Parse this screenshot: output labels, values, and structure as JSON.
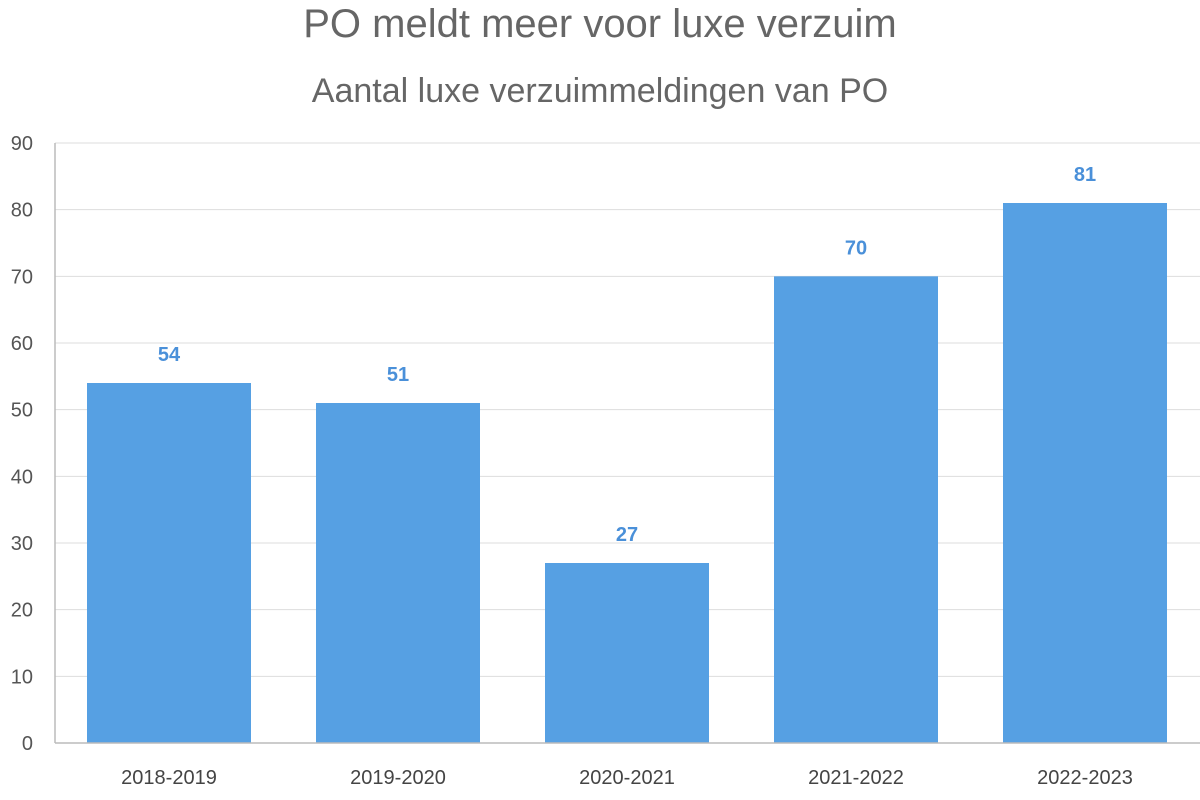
{
  "chart_data": {
    "type": "bar",
    "title": "PO meldt meer voor luxe verzuim",
    "subtitle": "Aantal luxe verzuimmeldingen van PO",
    "categories": [
      "2018-2019",
      "2019-2020",
      "2020-2021",
      "2021-2022",
      "2022-2023"
    ],
    "values": [
      54,
      51,
      27,
      70,
      81
    ],
    "ylim": [
      0,
      90
    ],
    "yticks": [
      0,
      10,
      20,
      30,
      40,
      50,
      60,
      70,
      80,
      90
    ],
    "grid": true,
    "legend": "none",
    "bar_color": "#56a0e3",
    "label_color": "#4a90d9"
  }
}
